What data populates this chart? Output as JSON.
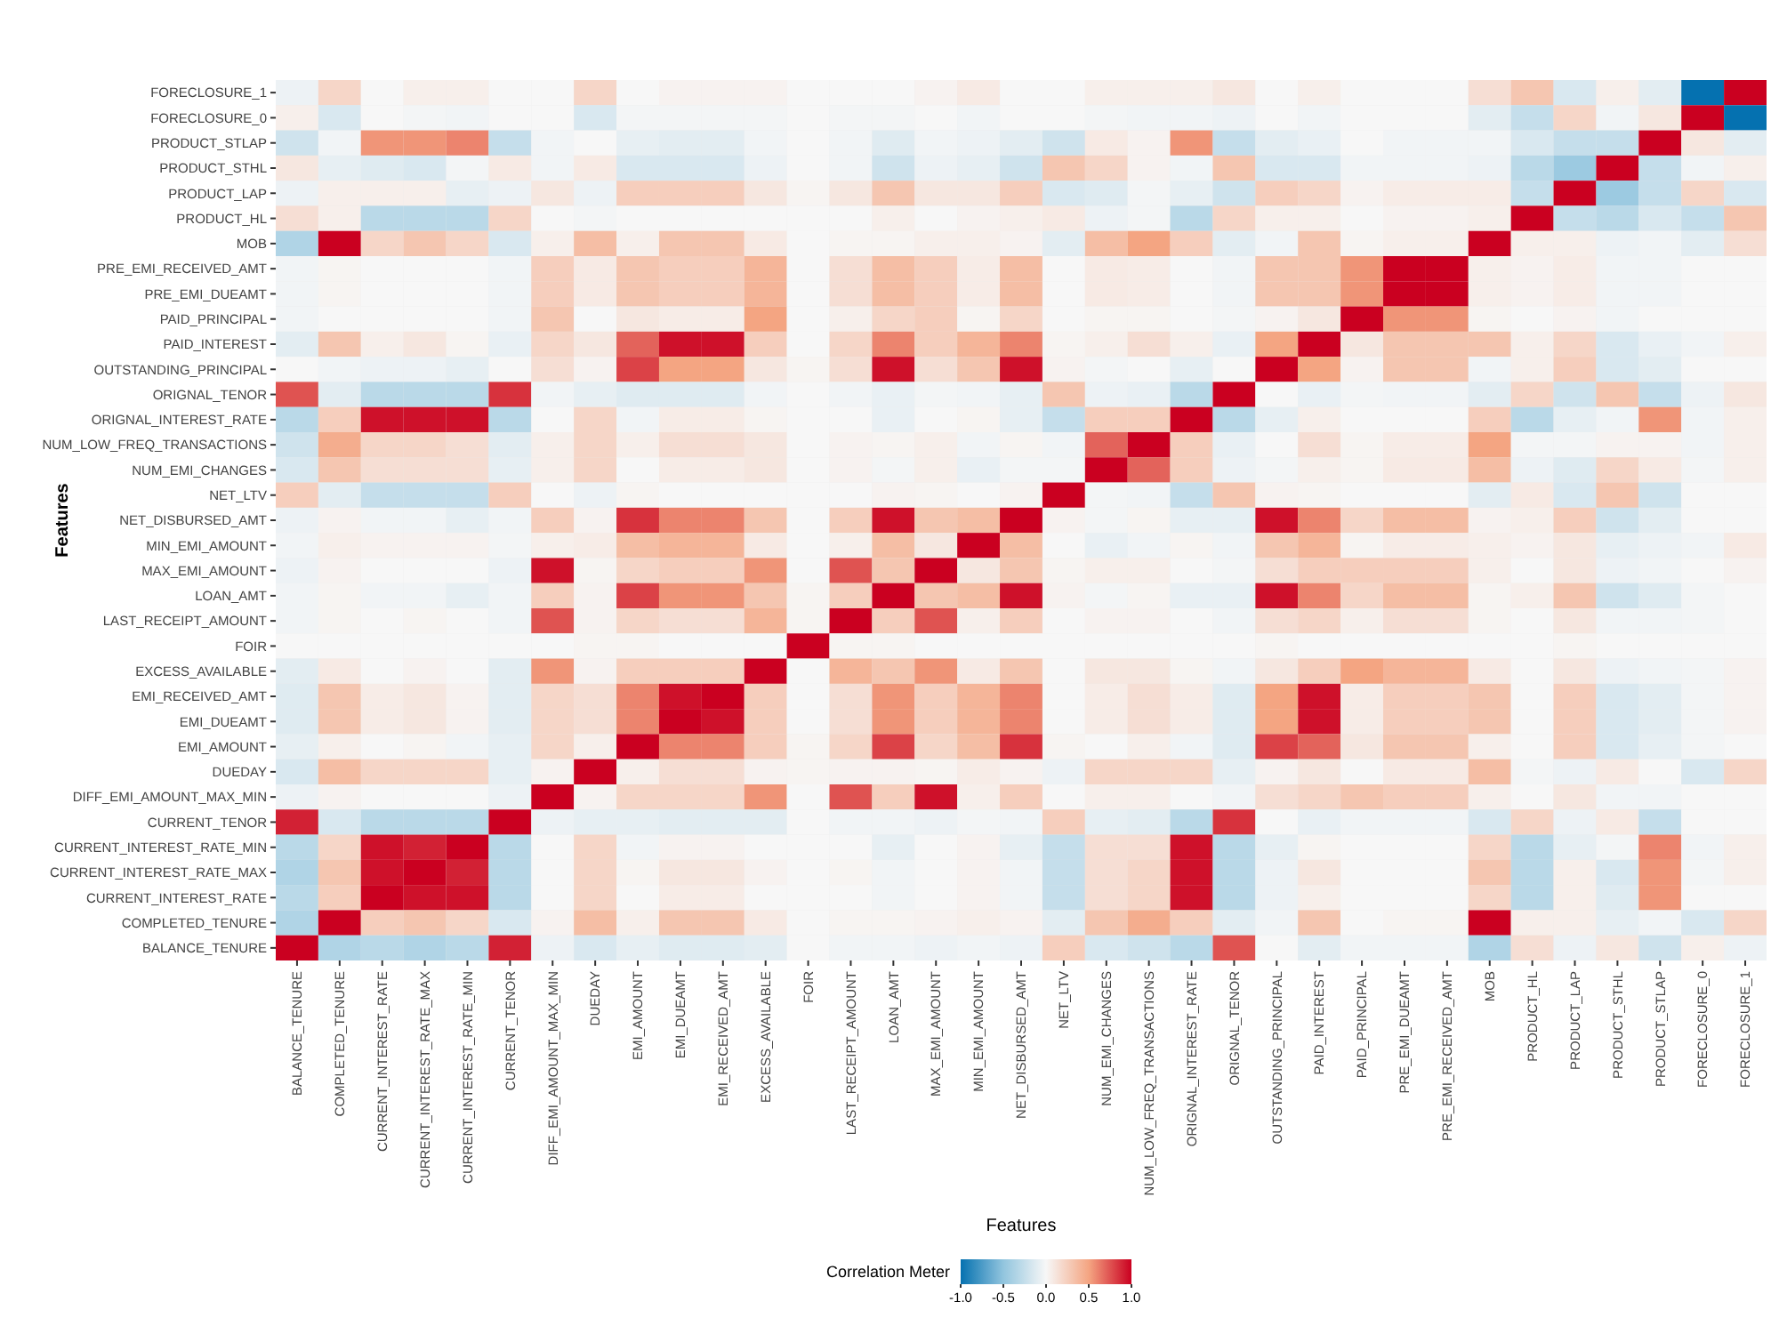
{
  "chart_data": {
    "type": "heatmap",
    "xlabel": "Features",
    "ylabel": "Features",
    "clabel": "Correlation Meter",
    "categories": [
      "BALANCE_TENURE",
      "COMPLETED_TENURE",
      "CURRENT_INTEREST_RATE",
      "CURRENT_INTEREST_RATE_MAX",
      "CURRENT_INTEREST_RATE_MIN",
      "CURRENT_TENOR",
      "DIFF_EMI_AMOUNT_MAX_MIN",
      "DUEDAY",
      "EMI_AMOUNT",
      "EMI_DUEAMT",
      "EMI_RECEIVED_AMT",
      "EXCESS_AVAILABLE",
      "FOIR",
      "LAST_RECEIPT_AMOUNT",
      "LOAN_AMT",
      "MAX_EMI_AMOUNT",
      "MIN_EMI_AMOUNT",
      "NET_DISBURSED_AMT",
      "NET_LTV",
      "NUM_EMI_CHANGES",
      "NUM_LOW_FREQ_TRANSACTIONS",
      "ORIGNAL_INTEREST_RATE",
      "ORIGNAL_TENOR",
      "OUTSTANDING_PRINCIPAL",
      "PAID_INTEREST",
      "PAID_PRINCIPAL",
      "PRE_EMI_DUEAMT",
      "PRE_EMI_RECEIVED_AMT",
      "MOB",
      "PRODUCT_HL",
      "PRODUCT_LAP",
      "PRODUCT_STHL",
      "PRODUCT_STLAP",
      "FORECLOSURE_0",
      "FORECLOSURE_1"
    ],
    "y_categories": [
      "FORECLOSURE_1",
      "FORECLOSURE_0",
      "PRODUCT_STLAP",
      "PRODUCT_STHL",
      "PRODUCT_LAP",
      "PRODUCT_HL",
      "MOB",
      "PRE_EMI_RECEIVED_AMT",
      "PRE_EMI_DUEAMT",
      "PAID_PRINCIPAL",
      "PAID_INTEREST",
      "OUTSTANDING_PRINCIPAL",
      "ORIGNAL_TENOR",
      "ORIGNAL_INTEREST_RATE",
      "NUM_LOW_FREQ_TRANSACTIONS",
      "NUM_EMI_CHANGES",
      "NET_LTV",
      "NET_DISBURSED_AMT",
      "MIN_EMI_AMOUNT",
      "MAX_EMI_AMOUNT",
      "LOAN_AMT",
      "LAST_RECEIPT_AMOUNT",
      "FOIR",
      "EXCESS_AVAILABLE",
      "EMI_RECEIVED_AMT",
      "EMI_DUEAMT",
      "EMI_AMOUNT",
      "DUEDAY",
      "DIFF_EMI_AMOUNT_MAX_MIN",
      "CURRENT_TENOR",
      "CURRENT_INTEREST_RATE_MIN",
      "CURRENT_INTEREST_RATE_MAX",
      "CURRENT_INTEREST_RATE",
      "COMPLETED_TENURE",
      "BALANCE_TENURE"
    ],
    "cells": [
      [
        -0.05,
        0.2,
        0,
        0.05,
        0.05,
        0,
        0,
        0.2,
        0,
        0.03,
        0.03,
        0.03,
        0,
        0,
        0,
        0.03,
        0.08,
        0,
        0,
        0.05,
        0.05,
        0.05,
        0.1,
        0,
        0.05,
        0,
        0,
        0,
        0.15,
        0.3,
        -0.15,
        0.05,
        -0.1,
        -1,
        1
      ],
      [
        0.05,
        -0.15,
        0,
        -0.02,
        -0.03,
        0,
        0,
        -0.15,
        -0.02,
        -0.02,
        -0.02,
        -0.02,
        0,
        -0.02,
        -0.02,
        0,
        -0.03,
        0,
        0,
        -0.02,
        -0.03,
        -0.03,
        -0.05,
        0,
        -0.03,
        0,
        0,
        0,
        -0.1,
        -0.25,
        0.2,
        -0.03,
        0.1,
        1,
        -1
      ],
      [
        -0.2,
        -0.03,
        0.55,
        0.55,
        0.6,
        -0.25,
        -0.03,
        0,
        -0.08,
        -0.1,
        -0.1,
        -0.03,
        0,
        -0.03,
        -0.12,
        -0.03,
        -0.05,
        -0.1,
        -0.2,
        0.08,
        0.03,
        0.55,
        -0.25,
        -0.1,
        -0.07,
        0,
        -0.03,
        -0.03,
        -0.03,
        -0.15,
        -0.25,
        -0.25,
        1,
        0.1,
        -0.1
      ],
      [
        0.1,
        -0.08,
        -0.12,
        -0.15,
        -0.02,
        0.08,
        -0.03,
        0.08,
        -0.15,
        -0.15,
        -0.15,
        -0.05,
        0,
        -0.03,
        -0.2,
        -0.05,
        -0.08,
        -0.2,
        0.3,
        0.2,
        0.03,
        -0.03,
        0.3,
        -0.15,
        -0.15,
        -0.03,
        -0.03,
        -0.03,
        -0.05,
        -0.3,
        -0.45,
        1,
        -0.25,
        -0.03,
        0.05
      ],
      [
        -0.05,
        0.05,
        0.05,
        0.05,
        -0.08,
        -0.05,
        0.1,
        -0.05,
        0.25,
        0.25,
        0.25,
        0.1,
        0.02,
        0.1,
        0.3,
        0.1,
        0.1,
        0.25,
        -0.15,
        -0.12,
        -0.02,
        -0.08,
        -0.2,
        0.25,
        0.2,
        0.03,
        0.07,
        0.07,
        0.07,
        -0.25,
        1,
        -0.45,
        -0.25,
        0.2,
        -0.15
      ],
      [
        0.15,
        0.05,
        -0.3,
        -0.3,
        -0.3,
        0.2,
        0,
        -0.02,
        0,
        0,
        0,
        0,
        0,
        0,
        0.05,
        0,
        0.03,
        0.05,
        0.08,
        -0.05,
        -0.02,
        -0.3,
        0.2,
        0.05,
        0.05,
        0,
        0.03,
        0.03,
        0.05,
        1,
        -0.25,
        -0.3,
        -0.15,
        -0.25,
        0.3
      ],
      [
        -0.35,
        1,
        0.2,
        0.3,
        0.2,
        -0.15,
        0.05,
        0.35,
        0.05,
        0.3,
        0.3,
        0.08,
        0,
        0.02,
        0.02,
        0.05,
        0.05,
        0.03,
        -0.1,
        0.35,
        0.5,
        0.25,
        -0.1,
        -0.03,
        0.3,
        0.02,
        0.05,
        0.05,
        1,
        0.05,
        0.05,
        -0.05,
        -0.03,
        -0.1,
        0.15
      ],
      [
        -0.03,
        0.02,
        0,
        0,
        0,
        -0.03,
        0.25,
        0.08,
        0.3,
        0.25,
        0.25,
        0.4,
        0,
        0.15,
        0.35,
        0.25,
        0.07,
        0.35,
        0,
        0.08,
        0.07,
        0,
        -0.03,
        0.3,
        0.3,
        0.55,
        1,
        1,
        0.05,
        0.03,
        0.07,
        -0.03,
        -0.03,
        0,
        0
      ],
      [
        -0.03,
        0.02,
        0,
        0,
        0,
        -0.03,
        0.25,
        0.08,
        0.3,
        0.25,
        0.25,
        0.4,
        0,
        0.15,
        0.35,
        0.25,
        0.07,
        0.35,
        0,
        0.08,
        0.07,
        0,
        -0.03,
        0.3,
        0.3,
        0.55,
        1,
        1,
        0.05,
        0.03,
        0.07,
        -0.03,
        -0.03,
        0,
        0
      ],
      [
        -0.03,
        0,
        0,
        0,
        0,
        -0.03,
        0.3,
        0,
        0.1,
        0.07,
        0.07,
        0.5,
        0,
        0.05,
        0.2,
        0.25,
        0.02,
        0.2,
        0,
        0.02,
        0.02,
        0,
        -0.02,
        0.03,
        0.1,
        1,
        0.55,
        0.55,
        0.02,
        0,
        0.03,
        -0.03,
        0,
        0,
        0
      ],
      [
        -0.1,
        0.3,
        0.05,
        0.1,
        0.02,
        -0.07,
        0.2,
        0.1,
        0.7,
        0.95,
        0.95,
        0.25,
        0,
        0.2,
        0.6,
        0.25,
        0.4,
        0.6,
        0.02,
        0.05,
        0.15,
        0.05,
        -0.07,
        0.5,
        1,
        0.1,
        0.3,
        0.3,
        0.3,
        0.05,
        0.2,
        -0.15,
        -0.07,
        -0.03,
        0.05
      ],
      [
        0,
        -0.03,
        -0.05,
        -0.05,
        -0.08,
        0,
        0.15,
        0.03,
        0.8,
        0.5,
        0.5,
        0.1,
        0.02,
        0.15,
        0.95,
        0.15,
        0.3,
        0.95,
        0.03,
        -0.02,
        0,
        -0.08,
        0,
        1,
        0.5,
        0.03,
        0.3,
        0.3,
        -0.03,
        0.05,
        0.25,
        -0.15,
        -0.1,
        0,
        0
      ],
      [
        0.75,
        -0.1,
        -0.3,
        -0.3,
        -0.3,
        0.85,
        -0.03,
        -0.08,
        -0.12,
        -0.12,
        -0.12,
        -0.03,
        0,
        -0.03,
        -0.07,
        -0.02,
        -0.03,
        -0.08,
        0.3,
        -0.05,
        -0.07,
        -0.3,
        1,
        0,
        -0.07,
        -0.02,
        -0.03,
        -0.03,
        -0.1,
        0.2,
        -0.2,
        0.3,
        -0.25,
        -0.05,
        0.1
      ],
      [
        -0.3,
        0.25,
        0.95,
        0.95,
        0.95,
        -0.3,
        0,
        0.2,
        -0.03,
        0.07,
        0.07,
        0.02,
        0,
        0,
        -0.07,
        0,
        0.02,
        -0.08,
        -0.25,
        0.25,
        0.25,
        1,
        -0.3,
        -0.08,
        0.05,
        0,
        0,
        0,
        0.25,
        -0.3,
        -0.08,
        -0.03,
        0.55,
        -0.03,
        0.05
      ],
      [
        -0.2,
        0.45,
        0.2,
        0.2,
        0.15,
        -0.1,
        0.05,
        0.2,
        0.05,
        0.15,
        0.15,
        0.1,
        0,
        0.03,
        0.02,
        0.05,
        -0.03,
        0.02,
        -0.03,
        0.7,
        1,
        0.25,
        -0.07,
        0,
        0.15,
        0.02,
        0.07,
        0.07,
        0.5,
        -0.02,
        -0.02,
        0.03,
        0.03,
        -0.03,
        0.05
      ],
      [
        -0.15,
        0.3,
        0.15,
        0.15,
        0.15,
        -0.08,
        0.05,
        0.2,
        0,
        0.07,
        0.07,
        0.1,
        0,
        0.03,
        -0.02,
        0.05,
        -0.07,
        -0.02,
        -0.02,
        1,
        0.7,
        0.25,
        -0.05,
        -0.02,
        0.05,
        0.02,
        0.08,
        0.08,
        0.35,
        -0.05,
        -0.12,
        0.2,
        0.08,
        -0.02,
        0.05
      ],
      [
        0.25,
        -0.1,
        -0.25,
        -0.25,
        -0.25,
        0.25,
        0,
        -0.05,
        0.02,
        0,
        0,
        0,
        0,
        0,
        0.03,
        0.02,
        0,
        0.03,
        1,
        -0.02,
        -0.03,
        -0.25,
        0.3,
        0.03,
        0.02,
        0,
        0,
        0,
        -0.1,
        0.08,
        -0.15,
        0.3,
        -0.2,
        0,
        0
      ],
      [
        -0.05,
        0.03,
        -0.03,
        -0.03,
        -0.08,
        -0.03,
        0.25,
        0.03,
        0.85,
        0.6,
        0.6,
        0.3,
        0,
        0.25,
        0.95,
        0.3,
        0.35,
        1,
        0.03,
        -0.02,
        0.02,
        -0.08,
        -0.08,
        0.95,
        0.6,
        0.2,
        0.35,
        0.35,
        0.03,
        0.05,
        0.25,
        -0.2,
        -0.1,
        0,
        0
      ],
      [
        -0.03,
        0.05,
        0.03,
        0.03,
        0.03,
        -0.02,
        0.05,
        0.07,
        0.35,
        0.4,
        0.4,
        0.08,
        0,
        0.05,
        0.35,
        0.1,
        1,
        0.35,
        0,
        -0.07,
        -0.03,
        0.02,
        -0.03,
        0.3,
        0.4,
        0.02,
        0.07,
        0.07,
        0.05,
        0.03,
        0.1,
        -0.08,
        -0.05,
        -0.03,
        0.08
      ],
      [
        -0.05,
        0.03,
        0,
        0,
        0,
        -0.05,
        0.95,
        0.02,
        0.2,
        0.25,
        0.25,
        0.55,
        0,
        0.75,
        0.3,
        1,
        0.1,
        0.3,
        0.02,
        0.05,
        0.05,
        0,
        -0.02,
        0.15,
        0.25,
        0.25,
        0.25,
        0.25,
        0.05,
        0,
        0.1,
        -0.05,
        -0.03,
        0,
        0.03
      ],
      [
        -0.03,
        0.02,
        -0.03,
        -0.03,
        -0.08,
        -0.03,
        0.25,
        0.03,
        0.8,
        0.55,
        0.55,
        0.3,
        0.02,
        0.25,
        1,
        0.3,
        0.35,
        0.95,
        0.03,
        -0.02,
        0.02,
        -0.07,
        -0.07,
        0.95,
        0.6,
        0.2,
        0.35,
        0.35,
        0.02,
        0.05,
        0.3,
        -0.2,
        -0.12,
        -0.02,
        0
      ],
      [
        -0.03,
        0.02,
        0,
        0.02,
        0,
        -0.03,
        0.75,
        0.03,
        0.2,
        0.15,
        0.15,
        0.4,
        0.02,
        1,
        0.25,
        0.75,
        0.05,
        0.25,
        0,
        0.03,
        0.03,
        0,
        -0.03,
        0.15,
        0.2,
        0.05,
        0.15,
        0.15,
        0.02,
        0,
        0.1,
        -0.03,
        -0.03,
        -0.02,
        0
      ],
      [
        0,
        0,
        0,
        0,
        0,
        0,
        0,
        0.02,
        0.02,
        0,
        0,
        0,
        1,
        0.02,
        0.02,
        0,
        0,
        0,
        0,
        0,
        0,
        0,
        0,
        0.02,
        0,
        0,
        0,
        0,
        0,
        0,
        0.02,
        0,
        0,
        0,
        0
      ],
      [
        -0.1,
        0.08,
        0,
        0.03,
        0,
        -0.1,
        0.55,
        0.03,
        0.25,
        0.25,
        0.25,
        1,
        0,
        0.4,
        0.3,
        0.55,
        0.08,
        0.3,
        0,
        0.1,
        0.1,
        0.02,
        -0.03,
        0.1,
        0.25,
        0.5,
        0.4,
        0.4,
        0.08,
        0,
        0.1,
        -0.05,
        -0.03,
        -0.02,
        0.03
      ],
      [
        -0.12,
        0.3,
        0.07,
        0.1,
        0.03,
        -0.1,
        0.2,
        0.15,
        0.6,
        0.95,
        1,
        0.25,
        0,
        0.15,
        0.55,
        0.25,
        0.4,
        0.6,
        0,
        0.07,
        0.15,
        0.07,
        -0.12,
        0.5,
        0.95,
        0.07,
        0.25,
        0.25,
        0.3,
        0,
        0.25,
        -0.15,
        -0.1,
        -0.02,
        0.03
      ],
      [
        -0.12,
        0.3,
        0.07,
        0.1,
        0.03,
        -0.1,
        0.2,
        0.15,
        0.6,
        1,
        0.95,
        0.25,
        0,
        0.15,
        0.55,
        0.25,
        0.4,
        0.6,
        0,
        0.07,
        0.15,
        0.07,
        -0.12,
        0.5,
        0.95,
        0.07,
        0.25,
        0.25,
        0.3,
        0,
        0.25,
        -0.15,
        -0.1,
        -0.02,
        0.03
      ],
      [
        -0.08,
        0.05,
        0,
        0.02,
        -0.03,
        -0.08,
        0.2,
        0.05,
        1,
        0.6,
        0.6,
        0.25,
        0.02,
        0.2,
        0.8,
        0.2,
        0.35,
        0.85,
        0.02,
        0,
        0.05,
        -0.03,
        -0.12,
        0.8,
        0.7,
        0.1,
        0.3,
        0.3,
        0.05,
        0,
        0.25,
        -0.15,
        -0.08,
        -0.02,
        0
      ],
      [
        -0.15,
        0.35,
        0.2,
        0.2,
        0.2,
        -0.08,
        0.03,
        1,
        0.05,
        0.15,
        0.15,
        0.03,
        0.02,
        0.03,
        0.03,
        0.02,
        0.07,
        0.03,
        -0.05,
        0.2,
        0.2,
        0.2,
        -0.08,
        0.03,
        0.1,
        0,
        0.08,
        0.08,
        0.35,
        -0.02,
        -0.05,
        0.08,
        0,
        -0.15,
        0.2
      ],
      [
        -0.05,
        0.03,
        0,
        0,
        0,
        -0.05,
        1,
        0.03,
        0.2,
        0.2,
        0.2,
        0.55,
        0,
        0.75,
        0.25,
        0.95,
        0.05,
        0.25,
        0,
        0.05,
        0.05,
        0,
        -0.03,
        0.15,
        0.2,
        0.3,
        0.25,
        0.25,
        0.05,
        0,
        0.1,
        -0.03,
        -0.03,
        0,
        0
      ],
      [
        0.9,
        -0.15,
        -0.3,
        -0.3,
        -0.3,
        1,
        -0.05,
        -0.08,
        -0.08,
        -0.1,
        -0.1,
        -0.1,
        0,
        -0.03,
        -0.03,
        -0.05,
        -0.02,
        -0.03,
        0.25,
        -0.08,
        -0.1,
        -0.3,
        0.85,
        0,
        -0.07,
        -0.03,
        -0.03,
        -0.03,
        -0.15,
        0.2,
        -0.05,
        0.08,
        -0.25,
        0,
        0
      ],
      [
        -0.3,
        0.2,
        0.95,
        0.9,
        1,
        -0.3,
        0,
        0.2,
        -0.03,
        0.03,
        0.03,
        0,
        0,
        0,
        -0.08,
        0,
        0.03,
        -0.08,
        -0.25,
        0.15,
        0.15,
        0.95,
        -0.3,
        -0.08,
        0.02,
        0,
        0,
        0,
        0.2,
        -0.3,
        -0.08,
        -0.02,
        0.6,
        -0.03,
        0.05
      ],
      [
        -0.35,
        0.3,
        0.95,
        1,
        0.9,
        -0.3,
        0,
        0.2,
        0.02,
        0.1,
        0.1,
        0.03,
        0,
        0.02,
        -0.03,
        0,
        0.03,
        -0.03,
        -0.25,
        0.15,
        0.2,
        0.95,
        -0.3,
        -0.05,
        0.1,
        0,
        0,
        0,
        0.3,
        -0.3,
        0.05,
        -0.15,
        0.55,
        -0.02,
        0.05
      ],
      [
        -0.3,
        0.25,
        1,
        0.95,
        0.95,
        -0.3,
        0,
        0.2,
        0,
        0.07,
        0.07,
        0,
        0,
        0,
        -0.03,
        0,
        0.03,
        -0.03,
        -0.25,
        0.15,
        0.2,
        0.95,
        -0.3,
        -0.05,
        0.05,
        0,
        0,
        0,
        0.2,
        -0.3,
        0.05,
        -0.12,
        0.55,
        0,
        0
      ],
      [
        -0.35,
        1,
        0.25,
        0.3,
        0.2,
        -0.15,
        0.03,
        0.35,
        0.05,
        0.3,
        0.3,
        0.08,
        0,
        0.02,
        0.02,
        0.03,
        0.05,
        0.03,
        -0.1,
        0.3,
        0.45,
        0.25,
        -0.1,
        -0.03,
        0.3,
        0,
        0.02,
        0.02,
        1,
        0.05,
        0.05,
        -0.08,
        -0.03,
        -0.15,
        0.2
      ],
      [
        1,
        -0.35,
        -0.3,
        -0.35,
        -0.3,
        0.9,
        -0.05,
        -0.15,
        -0.08,
        -0.12,
        -0.12,
        -0.1,
        0,
        -0.03,
        -0.03,
        -0.05,
        -0.03,
        -0.05,
        0.25,
        -0.15,
        -0.2,
        -0.3,
        0.75,
        0,
        -0.1,
        -0.03,
        -0.03,
        -0.03,
        -0.35,
        0.15,
        -0.05,
        0.1,
        -0.2,
        0.05,
        -0.05
      ]
    ],
    "clim": [
      -1,
      1
    ],
    "cticks": [
      {
        "value": -1,
        "label": "-1.0"
      },
      {
        "value": -0.5,
        "label": "-0.5"
      },
      {
        "value": 0,
        "label": "0.0"
      },
      {
        "value": 0.5,
        "label": "0.5"
      },
      {
        "value": 1,
        "label": "1.0"
      }
    ]
  }
}
